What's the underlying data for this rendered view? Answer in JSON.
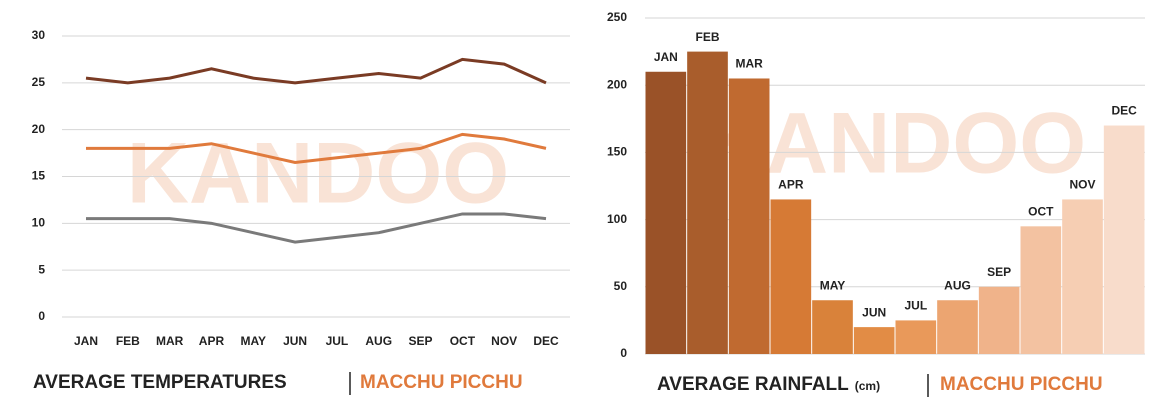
{
  "chart_data": [
    {
      "type": "line",
      "title": "AVERAGE TEMPERATURES",
      "subtitle": "MACCHU PICCHU",
      "watermark": "KANDOO",
      "categories": [
        "JAN",
        "FEB",
        "MAR",
        "APR",
        "MAY",
        "JUN",
        "JUL",
        "AUG",
        "SEP",
        "OCT",
        "NOV",
        "DEC"
      ],
      "series": [
        {
          "color": "#7a3b24",
          "values": [
            25.5,
            25,
            25.5,
            26.5,
            25.5,
            25,
            25.5,
            26,
            25.5,
            27.5,
            27,
            25
          ]
        },
        {
          "color": "#e07a3c",
          "values": [
            18,
            18,
            18,
            18.5,
            17.5,
            16.5,
            17,
            17.5,
            18,
            19.5,
            19,
            18
          ]
        },
        {
          "color": "#7a7a7a",
          "values": [
            10.5,
            10.5,
            10.5,
            10,
            9,
            8,
            8.5,
            9,
            10,
            11,
            11,
            10.5
          ]
        }
      ],
      "ylim": [
        0,
        30
      ],
      "yticks": [
        0,
        5,
        10,
        15,
        20,
        25,
        30
      ],
      "grid": true
    },
    {
      "type": "bar",
      "title": "AVERAGE RAINFALL",
      "unit": "(cm)",
      "subtitle": "MACCHU PICCHU",
      "watermark": "KANDOO",
      "categories": [
        "JAN",
        "FEB",
        "MAR",
        "APR",
        "MAY",
        "JUN",
        "JUL",
        "AUG",
        "SEP",
        "OCT",
        "NOV",
        "DEC"
      ],
      "values": [
        210,
        225,
        205,
        115,
        40,
        20,
        25,
        40,
        50,
        95,
        115,
        170
      ],
      "colors": [
        "#9a5228",
        "#a95d2c",
        "#c06a30",
        "#d67a35",
        "#d9823a",
        "#e28c45",
        "#e9995a",
        "#eca571",
        "#f0b38a",
        "#f3c2a1",
        "#f6ceb3",
        "#f8dccb"
      ],
      "ylim": [
        0,
        250
      ],
      "yticks": [
        0,
        50,
        100,
        150,
        200,
        250
      ],
      "grid": true
    }
  ]
}
